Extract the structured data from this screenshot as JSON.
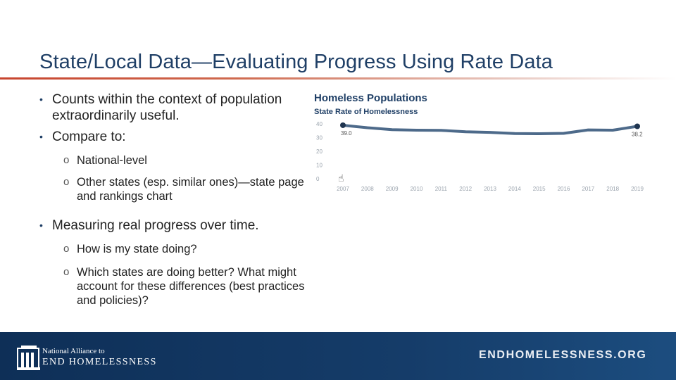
{
  "slide": {
    "title": "State/Local Data—Evaluating Progress Using Rate Data"
  },
  "bullets": [
    {
      "level": 1,
      "text": "Counts within the context of population extraordinarily useful."
    },
    {
      "level": 1,
      "text": "Compare to:"
    },
    {
      "level": 2,
      "text": "National-level"
    },
    {
      "level": 2,
      "text": "Other states (esp. similar ones)—state page and rankings chart"
    },
    {
      "level": 1,
      "text": "Measuring real progress over time."
    },
    {
      "level": 2,
      "text": "How is my state doing?"
    },
    {
      "level": 2,
      "text": "Which states are doing better?  What might account for these differences (best practices and policies)?"
    }
  ],
  "chart_data": {
    "type": "line",
    "title": "Homeless Populations",
    "subtitle": "State Rate of Homelessness",
    "x": [
      "2007",
      "2008",
      "2009",
      "2010",
      "2011",
      "2012",
      "2013",
      "2014",
      "2015",
      "2016",
      "2017",
      "2018",
      "2019"
    ],
    "series": [
      {
        "values": [
          39.0,
          37.2,
          35.8,
          35.4,
          35.3,
          34.2,
          33.8,
          32.9,
          32.8,
          33.1,
          35.6,
          35.4,
          38.2
        ]
      }
    ],
    "y_ticks": [
      "40",
      "30",
      "20",
      "10",
      "0"
    ],
    "ylim": [
      0,
      40
    ],
    "data_labels": {
      "start": "39.0",
      "end": "38.2"
    },
    "grid": false,
    "line_color": "#4d6a8a",
    "title_color": "#1f3f66"
  },
  "footer": {
    "org_line1": "National Alliance to",
    "org_line2": "END HOMELESSNESS",
    "url": "ENDHOMELESSNESS.ORG",
    "background": "#153c69"
  },
  "icons": {
    "bullet_level1": "•",
    "bullet_level2": "o",
    "logo": "building-logo-icon",
    "cursor": "hand-pointer-icon"
  }
}
